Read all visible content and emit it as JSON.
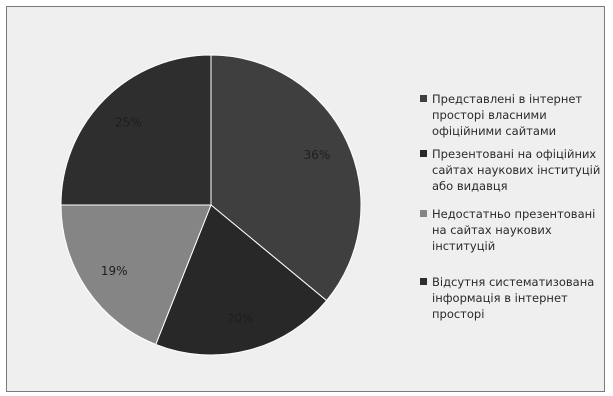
{
  "chart_data": {
    "type": "pie",
    "slices": [
      {
        "label": "Представлені в інтернет просторі  власними офіційними сайтами",
        "value": 36,
        "value_label": "36%",
        "color": "#3f3f3f"
      },
      {
        "label": "Презентовані на  офіційних сайтах наукових інституцій або видавця",
        "value": 20,
        "value_label": "20%",
        "color": "#282828"
      },
      {
        "label": "Недостатньо презентовані на сайтах наукових інституцій",
        "value": 19,
        "value_label": "19%",
        "color": "#858585"
      },
      {
        "label": "Відсутня систематизована інформація в інтернет просторі",
        "value": 25,
        "value_label": "25%",
        "color": "#2e2e2e"
      }
    ],
    "legend": {
      "position": "right",
      "entries": [
        {
          "lines": [
            "Представлені в інтернет",
            "просторі  власними",
            "офіційними сайтами"
          ]
        },
        {
          "lines": [
            "Презентовані на  офіційних",
            "сайтах наукових інституцій",
            "або видавця"
          ]
        },
        {
          "lines": [
            "Недостатньо презентовані",
            "на сайтах наукових",
            "інституцій"
          ]
        },
        {
          "lines": [
            "Відсутня систематизована",
            "інформація в інтернет",
            "просторі"
          ]
        }
      ]
    }
  }
}
